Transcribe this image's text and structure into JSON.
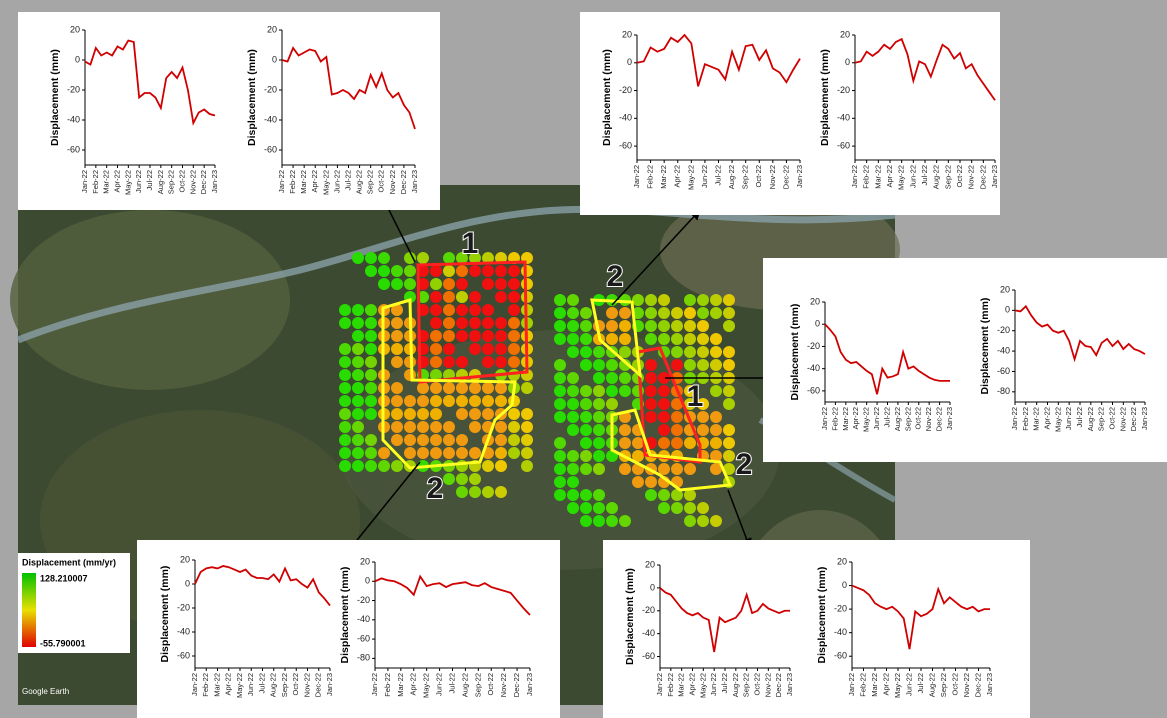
{
  "chart_data": [
    {
      "type": "line",
      "ylabel": "Displacement (mm)",
      "color": "#d00000",
      "xlim": [
        0,
        12
      ],
      "ylim": [
        -70,
        20
      ],
      "yticks": [
        20,
        0,
        -20,
        -40,
        -60
      ],
      "xticks": [
        {
          "value": 0,
          "label": "Jan-22"
        },
        {
          "value": 1,
          "label": "Feb-22"
        },
        {
          "value": 2,
          "label": "Mar-22"
        },
        {
          "value": 3,
          "label": "Apr-22"
        },
        {
          "value": 4,
          "label": "May-22"
        },
        {
          "value": 5,
          "label": "Jun-22"
        },
        {
          "value": 6,
          "label": "Jul-22"
        },
        {
          "value": 7,
          "label": "Aug-22"
        },
        {
          "value": 8,
          "label": "Sep-22"
        },
        {
          "value": 9,
          "label": "Oct-22"
        },
        {
          "value": 10,
          "label": "Nov-22"
        },
        {
          "value": 11,
          "label": "Dec-22"
        },
        {
          "value": 12,
          "label": "Jan-23"
        }
      ],
      "x": [
        0,
        0.5,
        1,
        1.5,
        2,
        2.5,
        3,
        3.5,
        4,
        4.5,
        5,
        5.5,
        6,
        6.5,
        7,
        7.5,
        8,
        8.5,
        9,
        9.5,
        10,
        10.5,
        11,
        11.5,
        12
      ],
      "values": [
        -1,
        -3,
        8,
        3,
        5,
        3,
        9,
        7,
        13,
        12,
        -25,
        -22,
        -22,
        -25,
        -32,
        -12,
        -8,
        -12,
        -5,
        -20,
        -42,
        -35,
        -33,
        -36,
        -37
      ]
    },
    {
      "type": "line",
      "ylabel": "Displacement (mm)",
      "color": "#d00000",
      "xlim": [
        0,
        12
      ],
      "ylim": [
        -70,
        20
      ],
      "yticks": [
        20,
        0,
        -20,
        -40,
        -60
      ],
      "xticks": [
        {
          "value": 0,
          "label": "Jan-22"
        },
        {
          "value": 1,
          "label": "Feb-22"
        },
        {
          "value": 2,
          "label": "Mar-22"
        },
        {
          "value": 3,
          "label": "Apr-22"
        },
        {
          "value": 4,
          "label": "May-22"
        },
        {
          "value": 5,
          "label": "Jun-22"
        },
        {
          "value": 6,
          "label": "Jul-22"
        },
        {
          "value": 7,
          "label": "Aug-22"
        },
        {
          "value": 8,
          "label": "Sep-22"
        },
        {
          "value": 9,
          "label": "Oct-22"
        },
        {
          "value": 10,
          "label": "Nov-22"
        },
        {
          "value": 11,
          "label": "Dec-22"
        },
        {
          "value": 12,
          "label": "Jan-23"
        }
      ],
      "x": [
        0,
        0.5,
        1,
        1.5,
        2,
        2.5,
        3,
        3.5,
        4,
        4.5,
        5,
        5.5,
        6,
        6.5,
        7,
        7.5,
        8,
        8.5,
        9,
        9.5,
        10,
        10.5,
        11,
        11.5,
        12
      ],
      "values": [
        0,
        -1,
        8,
        3,
        5,
        7,
        6,
        -1,
        2,
        -23,
        -22,
        -20,
        -22,
        -26,
        -20,
        -22,
        -10,
        -18,
        -9,
        -20,
        -25,
        -22,
        -30,
        -35,
        -46
      ]
    },
    {
      "type": "line",
      "ylabel": "Displacement (mm)",
      "color": "#d00000",
      "xlim": [
        0,
        12
      ],
      "ylim": [
        -70,
        20
      ],
      "yticks": [
        20,
        0,
        -20,
        -40,
        -60
      ],
      "xticks": [
        {
          "value": 0,
          "label": "Jan-22"
        },
        {
          "value": 1,
          "label": "Feb-22"
        },
        {
          "value": 2,
          "label": "Mar-22"
        },
        {
          "value": 3,
          "label": "Apr-22"
        },
        {
          "value": 4,
          "label": "May-22"
        },
        {
          "value": 5,
          "label": "Jun-22"
        },
        {
          "value": 6,
          "label": "Jul-22"
        },
        {
          "value": 7,
          "label": "Aug-22"
        },
        {
          "value": 8,
          "label": "Sep-22"
        },
        {
          "value": 9,
          "label": "Oct-22"
        },
        {
          "value": 10,
          "label": "Nov-22"
        },
        {
          "value": 11,
          "label": "Dec-22"
        },
        {
          "value": 12,
          "label": "Jan-23"
        }
      ],
      "x": [
        0,
        0.5,
        1,
        1.5,
        2,
        2.5,
        3,
        3.5,
        4,
        4.5,
        5,
        5.5,
        6,
        6.5,
        7,
        7.5,
        8,
        8.5,
        9,
        9.5,
        10,
        10.5,
        11,
        11.5,
        12
      ],
      "values": [
        0,
        1,
        11,
        8,
        10,
        18,
        15,
        20,
        14,
        -17,
        -1,
        -3,
        -5,
        -12,
        8,
        -5,
        12,
        13,
        2,
        9,
        -4,
        -7,
        -14,
        -5,
        3
      ]
    },
    {
      "type": "line",
      "ylabel": "Displacement (mm)",
      "color": "#d00000",
      "xlim": [
        0,
        12
      ],
      "ylim": [
        -70,
        20
      ],
      "yticks": [
        20,
        0,
        -20,
        -40,
        -60
      ],
      "xticks": [
        {
          "value": 0,
          "label": "Jan-22"
        },
        {
          "value": 1,
          "label": "Feb-22"
        },
        {
          "value": 2,
          "label": "Mar-22"
        },
        {
          "value": 3,
          "label": "Apr-22"
        },
        {
          "value": 4,
          "label": "May-22"
        },
        {
          "value": 5,
          "label": "Jun-22"
        },
        {
          "value": 6,
          "label": "Jul-22"
        },
        {
          "value": 7,
          "label": "Aug-22"
        },
        {
          "value": 8,
          "label": "Sep-22"
        },
        {
          "value": 9,
          "label": "Oct-22"
        },
        {
          "value": 10,
          "label": "Nov-22"
        },
        {
          "value": 11,
          "label": "Dec-22"
        },
        {
          "value": 12,
          "label": "Jan-23"
        }
      ],
      "x": [
        0,
        0.5,
        1,
        1.5,
        2,
        2.5,
        3,
        3.5,
        4,
        4.5,
        5,
        5.5,
        6,
        6.5,
        7,
        7.5,
        8,
        8.5,
        9,
        9.5,
        10,
        10.5,
        11,
        11.5,
        12
      ],
      "values": [
        0,
        1,
        8,
        5,
        8,
        13,
        10,
        15,
        17,
        6,
        -13,
        1,
        -1,
        -10,
        2,
        13,
        10,
        3,
        7,
        -4,
        -1,
        -9,
        -15,
        -21,
        -27
      ]
    },
    {
      "type": "line",
      "ylabel": "Displacement (mm)",
      "color": "#d00000",
      "xlim": [
        0,
        12
      ],
      "ylim": [
        -70,
        20
      ],
      "yticks": [
        20,
        0,
        -20,
        -40,
        -60
      ],
      "xticks": [
        {
          "value": 0,
          "label": "Jan-22"
        },
        {
          "value": 1,
          "label": "Feb-22"
        },
        {
          "value": 2,
          "label": "Mar-22"
        },
        {
          "value": 3,
          "label": "Apr-22"
        },
        {
          "value": 4,
          "label": "May-22"
        },
        {
          "value": 5,
          "label": "Jun-22"
        },
        {
          "value": 6,
          "label": "Jul-22"
        },
        {
          "value": 7,
          "label": "Aug-22"
        },
        {
          "value": 8,
          "label": "Sep-22"
        },
        {
          "value": 9,
          "label": "Oct-22"
        },
        {
          "value": 10,
          "label": "Nov-22"
        },
        {
          "value": 11,
          "label": "Dec-22"
        },
        {
          "value": 12,
          "label": "Jan-23"
        }
      ],
      "x": [
        0,
        0.5,
        1,
        1.5,
        2,
        2.5,
        3,
        3.5,
        4,
        4.5,
        5,
        5.5,
        6,
        6.5,
        7,
        7.5,
        8,
        8.5,
        9,
        9.5,
        10,
        10.5,
        11,
        11.5,
        12
      ],
      "values": [
        0,
        -5,
        -11,
        -25,
        -32,
        -35,
        -34,
        -38,
        -42,
        -45,
        -63,
        -40,
        -48,
        -47,
        -45,
        -25,
        -40,
        -38,
        -42,
        -45,
        -48,
        -50,
        -51,
        -51,
        -51
      ]
    },
    {
      "type": "line",
      "ylabel": "Displacement (mm)",
      "color": "#d00000",
      "xlim": [
        0,
        12
      ],
      "ylim": [
        -90,
        20
      ],
      "yticks": [
        20,
        0,
        -20,
        -40,
        -60,
        -80
      ],
      "xticks": [
        {
          "value": 0,
          "label": "Jan-22"
        },
        {
          "value": 1,
          "label": "Feb-22"
        },
        {
          "value": 2,
          "label": "Mar-22"
        },
        {
          "value": 3,
          "label": "Apr-22"
        },
        {
          "value": 4,
          "label": "May-22"
        },
        {
          "value": 5,
          "label": "Jun-22"
        },
        {
          "value": 6,
          "label": "Jul-22"
        },
        {
          "value": 7,
          "label": "Aug-22"
        },
        {
          "value": 8,
          "label": "Sep-22"
        },
        {
          "value": 9,
          "label": "Oct-22"
        },
        {
          "value": 10,
          "label": "Nov-22"
        },
        {
          "value": 11,
          "label": "Dec-22"
        },
        {
          "value": 12,
          "label": "Jan-23"
        }
      ],
      "x": [
        0,
        0.5,
        1,
        1.5,
        2,
        2.5,
        3,
        3.5,
        4,
        4.5,
        5,
        5.5,
        6,
        6.5,
        7,
        7.5,
        8,
        8.5,
        9,
        9.5,
        10,
        10.5,
        11,
        11.5,
        12
      ],
      "values": [
        0,
        -1,
        4,
        -5,
        -12,
        -16,
        -14,
        -20,
        -22,
        -20,
        -30,
        -48,
        -30,
        -35,
        -36,
        -44,
        -32,
        -28,
        -35,
        -30,
        -38,
        -33,
        -38,
        -40,
        -43
      ]
    },
    {
      "type": "line",
      "ylabel": "Displacement (mm)",
      "color": "#d00000",
      "xlim": [
        0,
        12
      ],
      "ylim": [
        -70,
        20
      ],
      "yticks": [
        20,
        0,
        -20,
        -40,
        -60
      ],
      "xticks": [
        {
          "value": 0,
          "label": "Jan-22"
        },
        {
          "value": 1,
          "label": "Feb-22"
        },
        {
          "value": 2,
          "label": "Mar-22"
        },
        {
          "value": 3,
          "label": "Apr-22"
        },
        {
          "value": 4,
          "label": "May-22"
        },
        {
          "value": 5,
          "label": "Jun-22"
        },
        {
          "value": 6,
          "label": "Jul-22"
        },
        {
          "value": 7,
          "label": "Aug-22"
        },
        {
          "value": 8,
          "label": "Sep-22"
        },
        {
          "value": 9,
          "label": "Oct-22"
        },
        {
          "value": 10,
          "label": "Nov-22"
        },
        {
          "value": 11,
          "label": "Dec-22"
        },
        {
          "value": 12,
          "label": "Jan-23"
        }
      ],
      "x": [
        0,
        0.5,
        1,
        1.5,
        2,
        2.5,
        3,
        3.5,
        4,
        4.5,
        5,
        5.5,
        6,
        6.5,
        7,
        7.5,
        8,
        8.5,
        9,
        9.5,
        10,
        10.5,
        11,
        11.5,
        12
      ],
      "values": [
        0,
        10,
        13,
        14,
        13,
        15,
        14,
        12,
        10,
        12,
        7,
        5,
        5,
        4,
        8,
        2,
        13,
        3,
        4,
        0,
        -3,
        4,
        -7,
        -12,
        -18
      ]
    },
    {
      "type": "line",
      "ylabel": "Displacement (mm)",
      "color": "#d00000",
      "xlim": [
        0,
        12
      ],
      "ylim": [
        -90,
        20
      ],
      "yticks": [
        20,
        0,
        -20,
        -40,
        -60,
        -80
      ],
      "xticks": [
        {
          "value": 0,
          "label": "Jan-22"
        },
        {
          "value": 1,
          "label": "Feb-22"
        },
        {
          "value": 2,
          "label": "Mar-22"
        },
        {
          "value": 3,
          "label": "Apr-22"
        },
        {
          "value": 4,
          "label": "May-22"
        },
        {
          "value": 5,
          "label": "Jun-22"
        },
        {
          "value": 6,
          "label": "Jul-22"
        },
        {
          "value": 7,
          "label": "Aug-22"
        },
        {
          "value": 8,
          "label": "Sep-22"
        },
        {
          "value": 9,
          "label": "Oct-22"
        },
        {
          "value": 10,
          "label": "Nov-22"
        },
        {
          "value": 11,
          "label": "Dec-22"
        },
        {
          "value": 12,
          "label": "Jan-23"
        }
      ],
      "x": [
        0,
        0.5,
        1,
        1.5,
        2,
        2.5,
        3,
        3.5,
        4,
        4.5,
        5,
        5.5,
        6,
        6.5,
        7,
        7.5,
        8,
        8.5,
        9,
        9.5,
        10,
        10.5,
        11,
        11.5,
        12
      ],
      "values": [
        0,
        3,
        1,
        0,
        -3,
        -7,
        -14,
        5,
        -5,
        -3,
        -2,
        -6,
        -3,
        -2,
        -1,
        -4,
        -5,
        -2,
        -6,
        -8,
        -10,
        -12,
        -20,
        -28,
        -35
      ]
    },
    {
      "type": "line",
      "ylabel": "Displacement (mm)",
      "color": "#d00000",
      "xlim": [
        0,
        12
      ],
      "ylim": [
        -70,
        20
      ],
      "yticks": [
        20,
        0,
        -20,
        -40,
        -60
      ],
      "xticks": [
        {
          "value": 0,
          "label": "Jan-22"
        },
        {
          "value": 1,
          "label": "Feb-22"
        },
        {
          "value": 2,
          "label": "Mar-22"
        },
        {
          "value": 3,
          "label": "Apr-22"
        },
        {
          "value": 4,
          "label": "May-22"
        },
        {
          "value": 5,
          "label": "Jun-22"
        },
        {
          "value": 6,
          "label": "Jul-22"
        },
        {
          "value": 7,
          "label": "Aug-22"
        },
        {
          "value": 8,
          "label": "Sep-22"
        },
        {
          "value": 9,
          "label": "Oct-22"
        },
        {
          "value": 10,
          "label": "Nov-22"
        },
        {
          "value": 11,
          "label": "Dec-22"
        },
        {
          "value": 12,
          "label": "Jan-23"
        }
      ],
      "x": [
        0,
        0.5,
        1,
        1.5,
        2,
        2.5,
        3,
        3.5,
        4,
        4.5,
        5,
        5.5,
        6,
        6.5,
        7,
        7.5,
        8,
        8.5,
        9,
        9.5,
        10,
        10.5,
        11,
        11.5,
        12
      ],
      "values": [
        0,
        -4,
        -6,
        -12,
        -18,
        -22,
        -24,
        -22,
        -26,
        -28,
        -56,
        -26,
        -30,
        -28,
        -26,
        -20,
        -6,
        -22,
        -20,
        -14,
        -18,
        -20,
        -22,
        -20,
        -20
      ]
    },
    {
      "type": "line",
      "ylabel": "Displacement (mm)",
      "color": "#d00000",
      "xlim": [
        0,
        12
      ],
      "ylim": [
        -70,
        20
      ],
      "yticks": [
        20,
        0,
        -20,
        -40,
        -60
      ],
      "xticks": [
        {
          "value": 0,
          "label": "Jan-22"
        },
        {
          "value": 1,
          "label": "Feb-22"
        },
        {
          "value": 2,
          "label": "Mar-22"
        },
        {
          "value": 3,
          "label": "Apr-22"
        },
        {
          "value": 4,
          "label": "May-22"
        },
        {
          "value": 5,
          "label": "Jun-22"
        },
        {
          "value": 6,
          "label": "Jul-22"
        },
        {
          "value": 7,
          "label": "Aug-22"
        },
        {
          "value": 8,
          "label": "Sep-22"
        },
        {
          "value": 9,
          "label": "Oct-22"
        },
        {
          "value": 10,
          "label": "Nov-22"
        },
        {
          "value": 11,
          "label": "Dec-22"
        },
        {
          "value": 12,
          "label": "Jan-23"
        }
      ],
      "x": [
        0,
        0.5,
        1,
        1.5,
        2,
        2.5,
        3,
        3.5,
        4,
        4.5,
        5,
        5.5,
        6,
        6.5,
        7,
        7.5,
        8,
        8.5,
        9,
        9.5,
        10,
        10.5,
        11,
        11.5,
        12
      ],
      "values": [
        0,
        -2,
        -4,
        -8,
        -15,
        -18,
        -20,
        -18,
        -22,
        -28,
        -54,
        -22,
        -26,
        -24,
        -20,
        -3,
        -15,
        -10,
        -14,
        -18,
        -20,
        -18,
        -22,
        -20,
        -20
      ]
    }
  ],
  "map": {
    "legend_title": "Displacement (mm/yr)",
    "legend_max": "128.210007",
    "legend_min": "-55.790001",
    "region_labels": [
      "1",
      "2",
      "1",
      "2",
      "2"
    ],
    "attribution": "Google Earth"
  }
}
